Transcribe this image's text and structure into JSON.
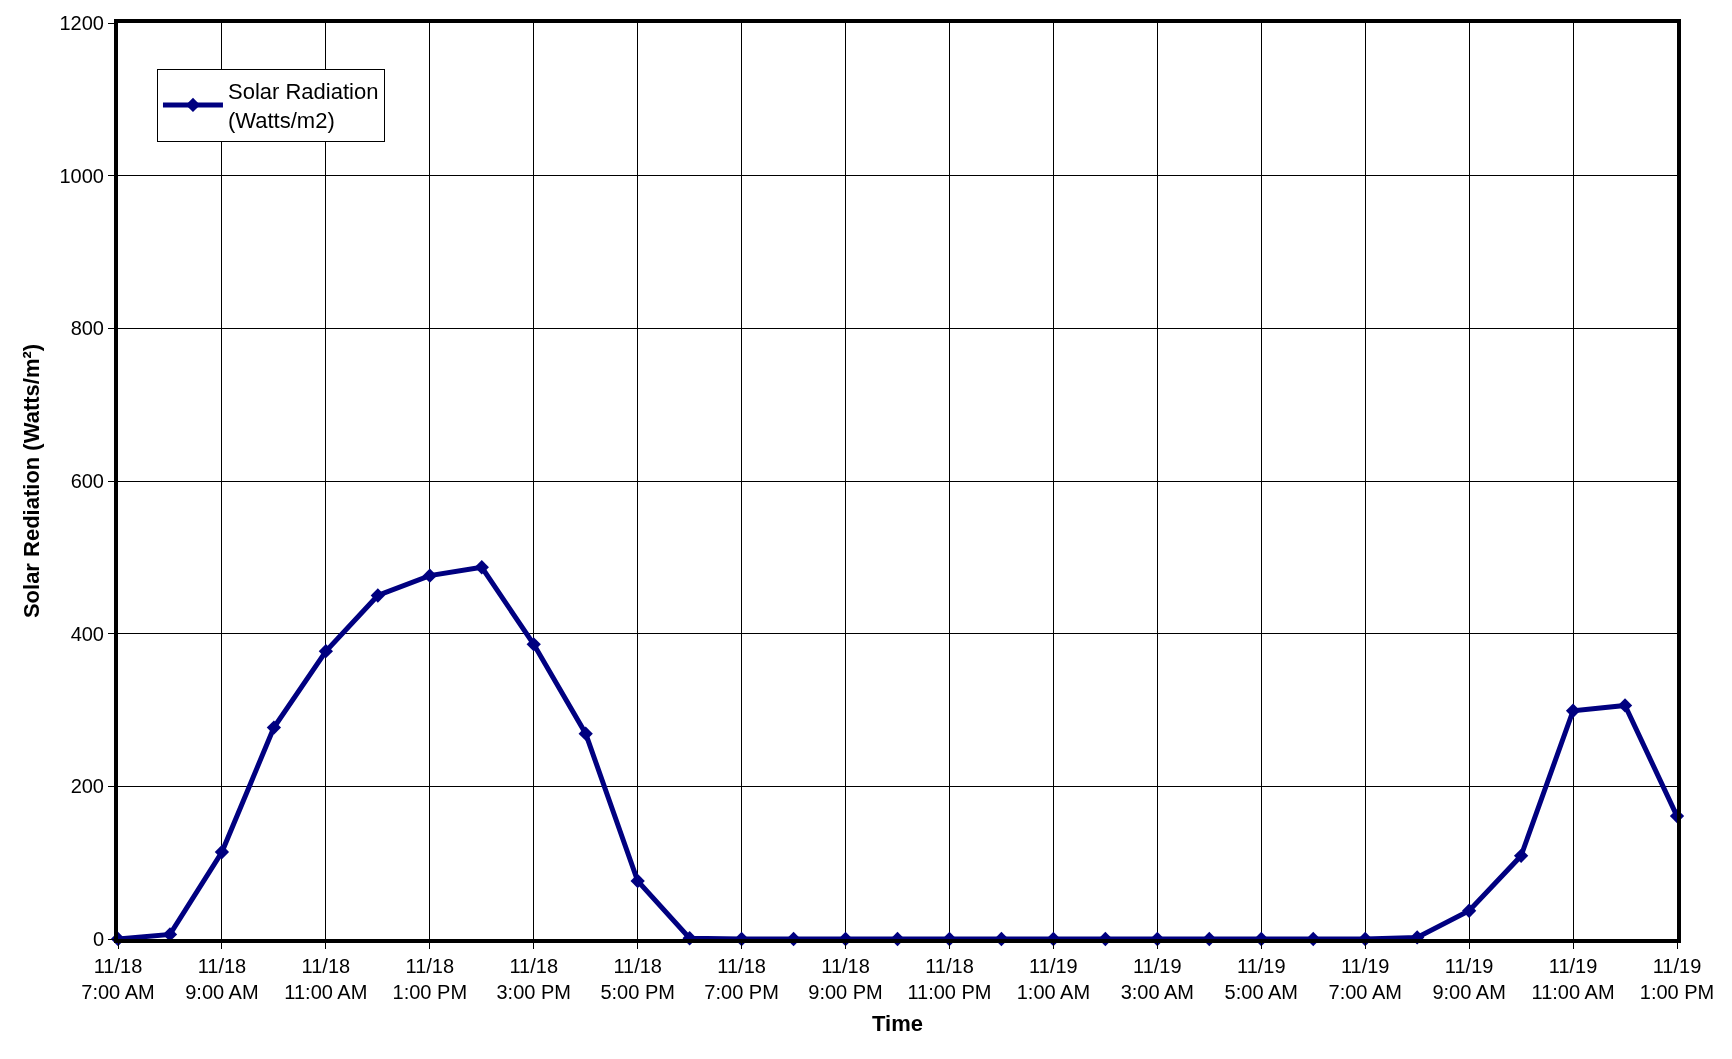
{
  "chart_data": {
    "type": "line",
    "xlabel": "Time",
    "ylabel": "Solar Rediation (Watts/m²)",
    "categories": [
      "11/18 7:00 AM",
      null,
      "11/18 9:00 AM",
      null,
      "11/18 11:00 AM",
      null,
      "11/18 1:00 PM",
      null,
      "11/18 3:00 PM",
      null,
      "11/18 5:00 PM",
      null,
      "11/18 7:00 PM",
      null,
      "11/18 9:00 PM",
      null,
      "11/18 11:00 PM",
      null,
      "11/19 1:00 AM",
      null,
      "11/19 3:00 AM",
      null,
      "11/19 5:00 AM",
      null,
      "11/19 7:00 AM",
      null,
      "11/19 9:00 AM",
      null,
      "11/19 11:00 AM",
      null,
      "11/19 1:00 PM"
    ],
    "series": [
      {
        "name": "Solar Radiation (Watts/m2)",
        "color": "#000080",
        "values": [
          0,
          6,
          114,
          277,
          377,
          450,
          476,
          487,
          386,
          269,
          76,
          1,
          0,
          0,
          0,
          0,
          0,
          0,
          0,
          0,
          0,
          0,
          0,
          0,
          0,
          2,
          37,
          109,
          299,
          306,
          161
        ]
      }
    ],
    "ylim": [
      0,
      1200
    ],
    "yticks": [
      0,
      200,
      400,
      600,
      800,
      1000,
      1200
    ],
    "grid": true,
    "legend": "top left",
    "marker": "diamond",
    "line_style": "solid"
  }
}
